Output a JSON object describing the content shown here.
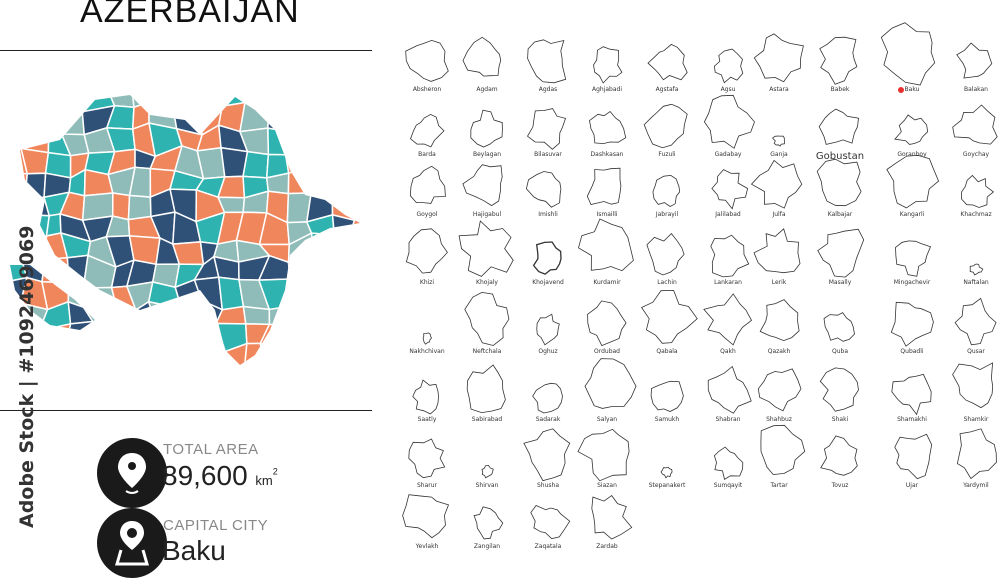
{
  "header": {
    "title": "AZERBAIJAN"
  },
  "watermark": "Adobe Stock | #1092469069",
  "colors": {
    "dark_blue": "#2f5178",
    "teal": "#2fb3b0",
    "orange": "#f0865c",
    "gray_teal": "#8fbcb8",
    "capital_marker": "#e8312f"
  },
  "stats": {
    "total_area": {
      "label": "TOTAL AREA",
      "value": "89,600",
      "unit": "km",
      "unit_sup": "2",
      "icon": "map-pin-icon"
    },
    "capital": {
      "label": "CAPITAL CITY",
      "value": "Baku",
      "icon": "map-location-icon"
    }
  },
  "regions": [
    [
      "Absheron",
      "Agdam",
      "Agdas",
      "Aghjabadi",
      "Agstafa",
      "Agsu",
      "Astara",
      "Babek",
      "Baku",
      "Balakan"
    ],
    [
      "Barda",
      "Beylagan",
      "Bilasuvar",
      "Dashkasan",
      "Fuzuli",
      "Gadabay",
      "Ganja",
      "Gobustan",
      "Goranboy",
      "Goychay"
    ],
    [
      "Goygol",
      "Hajigabul",
      "Imishli",
      "Ismailli",
      "Jabrayil",
      "Jalilabad",
      "Julfa",
      "Kalbajar",
      "Kangarli",
      "Khachmaz"
    ],
    [
      "Khizi",
      "Khojaly",
      "Khojavend",
      "Kurdamir",
      "Lachin",
      "Lankaran",
      "Lerik",
      "Masally",
      "Mingachevir",
      "Naftalan"
    ],
    [
      "Nakhchivan",
      "Neftchala",
      "Oghuz",
      "Ordubad",
      "Qabala",
      "Qakh",
      "Qazakh",
      "Quba",
      "Qubadli",
      "Qusar"
    ],
    [
      "Saatly",
      "Sabirabad",
      "Sadarak",
      "Salyan",
      "Samukh",
      "Shabran",
      "Shahbuz",
      "Shaki",
      "Shamakhi",
      "Shamkir"
    ],
    [
      "Sharur",
      "Shirvan",
      "Shusha",
      "Siazan",
      "Stepanakert",
      "Sumqayit",
      "Tartar",
      "Tovuz",
      "Ujar",
      "Yardymil"
    ],
    [
      "Yevlakh",
      "Zangilan",
      "Zaqatala",
      "Zardab"
    ]
  ]
}
